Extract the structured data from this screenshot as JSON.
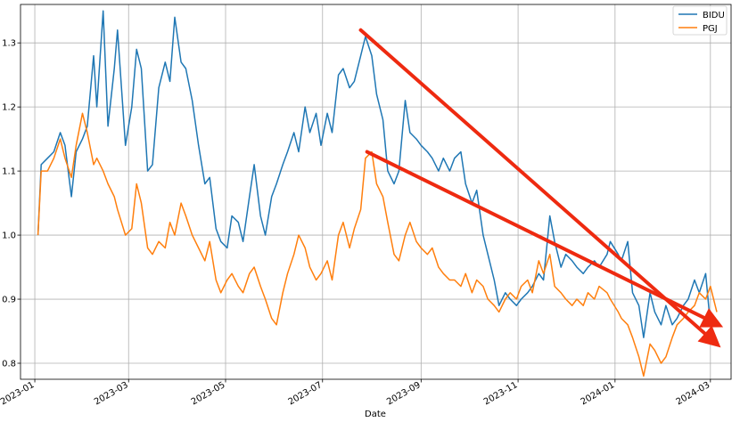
{
  "chart_data": {
    "type": "line",
    "title": "",
    "xlabel": "Date",
    "ylabel": "",
    "ylim": [
      0.775,
      1.36
    ],
    "xlim": [
      "2022-12-23",
      "2024-03-14"
    ],
    "grid": true,
    "legend_position": "top-right",
    "x_ticks": [
      "2023-01",
      "2023-03",
      "2023-05",
      "2023-07",
      "2023-09",
      "2023-11",
      "2024-01",
      "2024-03"
    ],
    "x_tick_dates": [
      "2023-01-01",
      "2023-03-01",
      "2023-05-01",
      "2023-07-01",
      "2023-09-01",
      "2023-11-01",
      "2024-01-01",
      "2024-03-01"
    ],
    "y_ticks": [
      "0.8",
      "0.9",
      "1.0",
      "1.1",
      "1.2",
      "1.3"
    ],
    "y_tick_values": [
      0.8,
      0.9,
      1.0,
      1.1,
      1.2,
      1.3
    ],
    "series": [
      {
        "name": "BIDU",
        "color": "#1f77b4",
        "points": [
          [
            "2023-01-03",
            1.0
          ],
          [
            "2023-01-05",
            1.11
          ],
          [
            "2023-01-09",
            1.12
          ],
          [
            "2023-01-13",
            1.13
          ],
          [
            "2023-01-17",
            1.16
          ],
          [
            "2023-01-20",
            1.14
          ],
          [
            "2023-01-24",
            1.06
          ],
          [
            "2023-01-27",
            1.13
          ],
          [
            "2023-01-31",
            1.15
          ],
          [
            "2023-02-03",
            1.17
          ],
          [
            "2023-02-07",
            1.28
          ],
          [
            "2023-02-09",
            1.2
          ],
          [
            "2023-02-13",
            1.35
          ],
          [
            "2023-02-16",
            1.17
          ],
          [
            "2023-02-20",
            1.26
          ],
          [
            "2023-02-22",
            1.32
          ],
          [
            "2023-02-27",
            1.14
          ],
          [
            "2023-03-03",
            1.2
          ],
          [
            "2023-03-06",
            1.29
          ],
          [
            "2023-03-09",
            1.26
          ],
          [
            "2023-03-13",
            1.1
          ],
          [
            "2023-03-16",
            1.11
          ],
          [
            "2023-03-20",
            1.23
          ],
          [
            "2023-03-24",
            1.27
          ],
          [
            "2023-03-27",
            1.24
          ],
          [
            "2023-03-30",
            1.34
          ],
          [
            "2023-04-03",
            1.27
          ],
          [
            "2023-04-06",
            1.26
          ],
          [
            "2023-04-10",
            1.21
          ],
          [
            "2023-04-14",
            1.14
          ],
          [
            "2023-04-18",
            1.08
          ],
          [
            "2023-04-21",
            1.09
          ],
          [
            "2023-04-25",
            1.01
          ],
          [
            "2023-04-28",
            0.99
          ],
          [
            "2023-05-02",
            0.98
          ],
          [
            "2023-05-05",
            1.03
          ],
          [
            "2023-05-09",
            1.02
          ],
          [
            "2023-05-12",
            0.99
          ],
          [
            "2023-05-16",
            1.06
          ],
          [
            "2023-05-19",
            1.11
          ],
          [
            "2023-05-23",
            1.03
          ],
          [
            "2023-05-26",
            1.0
          ],
          [
            "2023-05-30",
            1.06
          ],
          [
            "2023-06-02",
            1.08
          ],
          [
            "2023-06-06",
            1.11
          ],
          [
            "2023-06-09",
            1.13
          ],
          [
            "2023-06-13",
            1.16
          ],
          [
            "2023-06-16",
            1.13
          ],
          [
            "2023-06-20",
            1.2
          ],
          [
            "2023-06-23",
            1.16
          ],
          [
            "2023-06-27",
            1.19
          ],
          [
            "2023-06-30",
            1.14
          ],
          [
            "2023-07-04",
            1.19
          ],
          [
            "2023-07-07",
            1.16
          ],
          [
            "2023-07-11",
            1.25
          ],
          [
            "2023-07-14",
            1.26
          ],
          [
            "2023-07-18",
            1.23
          ],
          [
            "2023-07-21",
            1.24
          ],
          [
            "2023-07-25",
            1.28
          ],
          [
            "2023-07-28",
            1.31
          ],
          [
            "2023-08-01",
            1.28
          ],
          [
            "2023-08-04",
            1.22
          ],
          [
            "2023-08-08",
            1.18
          ],
          [
            "2023-08-11",
            1.1
          ],
          [
            "2023-08-15",
            1.08
          ],
          [
            "2023-08-18",
            1.1
          ],
          [
            "2023-08-22",
            1.21
          ],
          [
            "2023-08-25",
            1.16
          ],
          [
            "2023-08-29",
            1.15
          ],
          [
            "2023-09-01",
            1.14
          ],
          [
            "2023-09-05",
            1.13
          ],
          [
            "2023-09-08",
            1.12
          ],
          [
            "2023-09-12",
            1.1
          ],
          [
            "2023-09-15",
            1.12
          ],
          [
            "2023-09-19",
            1.1
          ],
          [
            "2023-09-22",
            1.12
          ],
          [
            "2023-09-26",
            1.13
          ],
          [
            "2023-09-29",
            1.08
          ],
          [
            "2023-10-03",
            1.05
          ],
          [
            "2023-10-06",
            1.07
          ],
          [
            "2023-10-10",
            1.0
          ],
          [
            "2023-10-13",
            0.97
          ],
          [
            "2023-10-17",
            0.93
          ],
          [
            "2023-10-20",
            0.89
          ],
          [
            "2023-10-24",
            0.91
          ],
          [
            "2023-10-27",
            0.9
          ],
          [
            "2023-10-31",
            0.89
          ],
          [
            "2023-11-03",
            0.9
          ],
          [
            "2023-11-07",
            0.91
          ],
          [
            "2023-11-10",
            0.92
          ],
          [
            "2023-11-14",
            0.94
          ],
          [
            "2023-11-17",
            0.93
          ],
          [
            "2023-11-21",
            1.03
          ],
          [
            "2023-11-24",
            0.99
          ],
          [
            "2023-11-28",
            0.95
          ],
          [
            "2023-12-01",
            0.97
          ],
          [
            "2023-12-05",
            0.96
          ],
          [
            "2023-12-08",
            0.95
          ],
          [
            "2023-12-12",
            0.94
          ],
          [
            "2023-12-15",
            0.95
          ],
          [
            "2023-12-19",
            0.96
          ],
          [
            "2023-12-22",
            0.95
          ],
          [
            "2023-12-27",
            0.97
          ],
          [
            "2023-12-29",
            0.99
          ],
          [
            "2024-01-03",
            0.97
          ],
          [
            "2024-01-05",
            0.96
          ],
          [
            "2024-01-09",
            0.99
          ],
          [
            "2024-01-12",
            0.91
          ],
          [
            "2024-01-16",
            0.89
          ],
          [
            "2024-01-19",
            0.84
          ],
          [
            "2024-01-23",
            0.91
          ],
          [
            "2024-01-26",
            0.88
          ],
          [
            "2024-01-30",
            0.86
          ],
          [
            "2024-02-02",
            0.89
          ],
          [
            "2024-02-06",
            0.86
          ],
          [
            "2024-02-09",
            0.87
          ],
          [
            "2024-02-13",
            0.89
          ],
          [
            "2024-02-16",
            0.9
          ],
          [
            "2024-02-20",
            0.93
          ],
          [
            "2024-02-23",
            0.91
          ],
          [
            "2024-02-27",
            0.94
          ],
          [
            "2024-03-01",
            0.86
          ],
          [
            "2024-03-05",
            0.83
          ]
        ]
      },
      {
        "name": "PGJ",
        "color": "#ff7f0e",
        "points": [
          [
            "2023-01-03",
            1.0
          ],
          [
            "2023-01-05",
            1.1
          ],
          [
            "2023-01-09",
            1.1
          ],
          [
            "2023-01-13",
            1.12
          ],
          [
            "2023-01-17",
            1.15
          ],
          [
            "2023-01-20",
            1.12
          ],
          [
            "2023-01-24",
            1.09
          ],
          [
            "2023-01-27",
            1.14
          ],
          [
            "2023-01-31",
            1.19
          ],
          [
            "2023-02-03",
            1.16
          ],
          [
            "2023-02-07",
            1.11
          ],
          [
            "2023-02-09",
            1.12
          ],
          [
            "2023-02-13",
            1.1
          ],
          [
            "2023-02-16",
            1.08
          ],
          [
            "2023-02-20",
            1.06
          ],
          [
            "2023-02-22",
            1.04
          ],
          [
            "2023-02-27",
            1.0
          ],
          [
            "2023-03-03",
            1.01
          ],
          [
            "2023-03-06",
            1.08
          ],
          [
            "2023-03-09",
            1.05
          ],
          [
            "2023-03-13",
            0.98
          ],
          [
            "2023-03-16",
            0.97
          ],
          [
            "2023-03-20",
            0.99
          ],
          [
            "2023-03-24",
            0.98
          ],
          [
            "2023-03-27",
            1.02
          ],
          [
            "2023-03-30",
            1.0
          ],
          [
            "2023-04-03",
            1.05
          ],
          [
            "2023-04-06",
            1.03
          ],
          [
            "2023-04-10",
            1.0
          ],
          [
            "2023-04-14",
            0.98
          ],
          [
            "2023-04-18",
            0.96
          ],
          [
            "2023-04-21",
            0.99
          ],
          [
            "2023-04-25",
            0.93
          ],
          [
            "2023-04-28",
            0.91
          ],
          [
            "2023-05-02",
            0.93
          ],
          [
            "2023-05-05",
            0.94
          ],
          [
            "2023-05-09",
            0.92
          ],
          [
            "2023-05-12",
            0.91
          ],
          [
            "2023-05-16",
            0.94
          ],
          [
            "2023-05-19",
            0.95
          ],
          [
            "2023-05-23",
            0.92
          ],
          [
            "2023-05-26",
            0.9
          ],
          [
            "2023-05-30",
            0.87
          ],
          [
            "2023-06-02",
            0.86
          ],
          [
            "2023-06-06",
            0.91
          ],
          [
            "2023-06-09",
            0.94
          ],
          [
            "2023-06-13",
            0.97
          ],
          [
            "2023-06-16",
            1.0
          ],
          [
            "2023-06-20",
            0.98
          ],
          [
            "2023-06-23",
            0.95
          ],
          [
            "2023-06-27",
            0.93
          ],
          [
            "2023-06-30",
            0.94
          ],
          [
            "2023-07-04",
            0.96
          ],
          [
            "2023-07-07",
            0.93
          ],
          [
            "2023-07-11",
            1.0
          ],
          [
            "2023-07-14",
            1.02
          ],
          [
            "2023-07-18",
            0.98
          ],
          [
            "2023-07-21",
            1.01
          ],
          [
            "2023-07-25",
            1.04
          ],
          [
            "2023-07-28",
            1.12
          ],
          [
            "2023-08-01",
            1.13
          ],
          [
            "2023-08-04",
            1.08
          ],
          [
            "2023-08-08",
            1.06
          ],
          [
            "2023-08-11",
            1.02
          ],
          [
            "2023-08-15",
            0.97
          ],
          [
            "2023-08-18",
            0.96
          ],
          [
            "2023-08-22",
            1.0
          ],
          [
            "2023-08-25",
            1.02
          ],
          [
            "2023-08-29",
            0.99
          ],
          [
            "2023-09-01",
            0.98
          ],
          [
            "2023-09-05",
            0.97
          ],
          [
            "2023-09-08",
            0.98
          ],
          [
            "2023-09-12",
            0.95
          ],
          [
            "2023-09-15",
            0.94
          ],
          [
            "2023-09-19",
            0.93
          ],
          [
            "2023-09-22",
            0.93
          ],
          [
            "2023-09-26",
            0.92
          ],
          [
            "2023-09-29",
            0.94
          ],
          [
            "2023-10-03",
            0.91
          ],
          [
            "2023-10-06",
            0.93
          ],
          [
            "2023-10-10",
            0.92
          ],
          [
            "2023-10-13",
            0.9
          ],
          [
            "2023-10-17",
            0.89
          ],
          [
            "2023-10-20",
            0.88
          ],
          [
            "2023-10-24",
            0.9
          ],
          [
            "2023-10-27",
            0.91
          ],
          [
            "2023-10-31",
            0.9
          ],
          [
            "2023-11-03",
            0.92
          ],
          [
            "2023-11-07",
            0.93
          ],
          [
            "2023-11-10",
            0.91
          ],
          [
            "2023-11-14",
            0.96
          ],
          [
            "2023-11-17",
            0.94
          ],
          [
            "2023-11-21",
            0.97
          ],
          [
            "2023-11-24",
            0.92
          ],
          [
            "2023-11-28",
            0.91
          ],
          [
            "2023-12-01",
            0.9
          ],
          [
            "2023-12-05",
            0.89
          ],
          [
            "2023-12-08",
            0.9
          ],
          [
            "2023-12-12",
            0.89
          ],
          [
            "2023-12-15",
            0.91
          ],
          [
            "2023-12-19",
            0.9
          ],
          [
            "2023-12-22",
            0.92
          ],
          [
            "2023-12-27",
            0.91
          ],
          [
            "2023-12-29",
            0.9
          ],
          [
            "2024-01-03",
            0.88
          ],
          [
            "2024-01-05",
            0.87
          ],
          [
            "2024-01-09",
            0.86
          ],
          [
            "2024-01-12",
            0.84
          ],
          [
            "2024-01-16",
            0.81
          ],
          [
            "2024-01-19",
            0.78
          ],
          [
            "2024-01-23",
            0.83
          ],
          [
            "2024-01-26",
            0.82
          ],
          [
            "2024-01-30",
            0.8
          ],
          [
            "2024-02-02",
            0.81
          ],
          [
            "2024-02-06",
            0.84
          ],
          [
            "2024-02-09",
            0.86
          ],
          [
            "2024-02-13",
            0.87
          ],
          [
            "2024-02-16",
            0.88
          ],
          [
            "2024-02-20",
            0.89
          ],
          [
            "2024-02-23",
            0.91
          ],
          [
            "2024-02-27",
            0.9
          ],
          [
            "2024-03-01",
            0.92
          ],
          [
            "2024-03-05",
            0.88
          ]
        ]
      }
    ],
    "annotations": [
      {
        "type": "arrow",
        "color": "#ee2a10",
        "from": [
          "2023-07-25",
          1.32
        ],
        "to": [
          "2024-03-05",
          0.83
        ]
      },
      {
        "type": "arrow",
        "color": "#ee2a10",
        "from": [
          "2023-07-29",
          1.13
        ],
        "to": [
          "2024-03-06",
          0.86
        ]
      }
    ]
  }
}
